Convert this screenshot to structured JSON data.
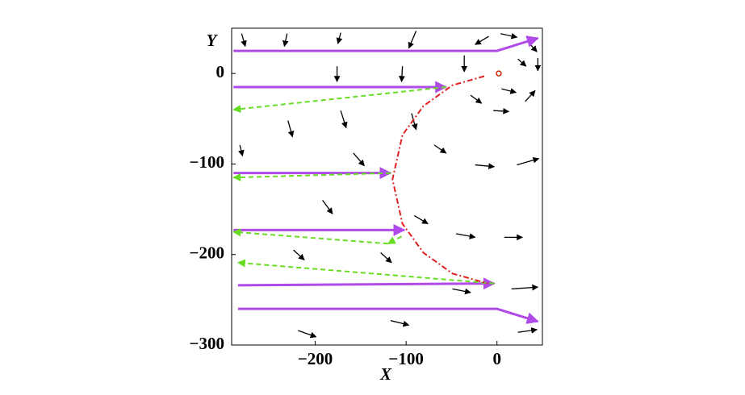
{
  "chart_data": {
    "type": "vector-field",
    "xlabel": "X",
    "ylabel": "Y",
    "xlim": [
      -292,
      50
    ],
    "ylim": [
      -300,
      50
    ],
    "xticks": [
      {
        "value": -200,
        "label": "−200"
      },
      {
        "value": -100,
        "label": "−100"
      },
      0
    ],
    "yticks": [
      0,
      {
        "value": -100,
        "label": "−100"
      },
      {
        "value": -200,
        "label": "−200"
      },
      {
        "value": -300,
        "label": "−300"
      }
    ],
    "series": [
      {
        "color": "#b04ae8",
        "dash": "solid",
        "x": [
          -290,
          0,
          45
        ],
        "y": [
          25,
          25,
          39
        ]
      },
      {
        "color": "#b04ae8",
        "dash": "solid",
        "x": [
          -290,
          -56
        ],
        "y": [
          -15,
          -15
        ]
      },
      {
        "color": "#b04ae8",
        "dash": "solid",
        "x": [
          -290,
          -117
        ],
        "y": [
          -110,
          -110
        ]
      },
      {
        "color": "#b04ae8",
        "dash": "solid",
        "x": [
          -290,
          -102
        ],
        "y": [
          -173,
          -173
        ]
      },
      {
        "color": "#b04ae8",
        "dash": "solid",
        "x": [
          -285,
          -3
        ],
        "y": [
          -234,
          -232
        ]
      },
      {
        "color": "#b04ae8",
        "dash": "solid",
        "x": [
          -285,
          0,
          45
        ],
        "y": [
          -260,
          -260,
          -274
        ]
      },
      {
        "color": "#66dd22",
        "dash": "dashed",
        "x": [
          -56,
          -290
        ],
        "y": [
          -15,
          -40
        ]
      },
      {
        "color": "#66dd22",
        "dash": "dashed",
        "x": [
          -117,
          -290
        ],
        "y": [
          -110,
          -115
        ]
      },
      {
        "color": "#66dd22",
        "dash": "dashed",
        "x": [
          -105,
          -120
        ],
        "y": [
          -180,
          -188
        ]
      },
      {
        "color": "#66dd22",
        "dash": "dashed",
        "x": [
          -120,
          -290
        ],
        "y": [
          -188,
          -175
        ]
      },
      {
        "color": "#66dd22",
        "dash": "dashed",
        "x": [
          -3,
          -285
        ],
        "y": [
          -232,
          -209
        ]
      },
      {
        "color": "#e02020",
        "dash": "dashdot",
        "x": [
          -14,
          -49,
          -81,
          -104,
          -115,
          -104,
          -81,
          -49,
          -10
        ],
        "y": [
          -3,
          -13,
          -36,
          -68,
          -117,
          -166,
          -198,
          -221,
          -232
        ]
      }
    ],
    "point": {
      "x": 2,
      "y": 0,
      "color": "#cc2200"
    },
    "quiver": {
      "color": "#000000",
      "x": [
        -281,
        -231,
        -172,
        -89,
        -9,
        4,
        33,
        -36,
        45,
        23,
        -29,
        -4,
        31,
        5,
        -176,
        -104,
        -230,
        -172,
        -94,
        -283,
        -158,
        -69,
        -24,
        22,
        -192,
        -91,
        -45,
        8,
        -224,
        -128,
        -49,
        16,
        -219,
        -117,
        23
      ],
      "y": [
        44,
        44,
        45,
        47,
        41,
        44,
        36,
        20,
        17,
        16,
        -24,
        -41,
        -31,
        -17,
        8,
        8,
        -52,
        -41,
        -44,
        -79,
        -88,
        -79,
        -101,
        -101,
        -140,
        -157,
        -177,
        -181,
        -195,
        -198,
        -238,
        -238,
        -284,
        -273,
        -286
      ],
      "u": [
        4,
        -3,
        -3,
        -8,
        -15,
        18,
        11,
        0,
        0,
        9,
        12,
        17,
        11,
        16,
        0,
        -1,
        5,
        6,
        5,
        3,
        12,
        13,
        21,
        24,
        11,
        15,
        21,
        20,
        12,
        12,
        20,
        29,
        20,
        20,
        21
      ],
      "v": [
        -14,
        -14,
        -12,
        -19,
        -9,
        -4,
        -12,
        -18,
        -14,
        -8,
        -9,
        -1,
        12,
        -4,
        -17,
        -17,
        -18,
        -19,
        -18,
        -12,
        -14,
        -9,
        -2,
        7,
        -15,
        -9,
        -4,
        0,
        -11,
        -11,
        -4,
        2,
        -7,
        -5,
        3
      ]
    }
  }
}
